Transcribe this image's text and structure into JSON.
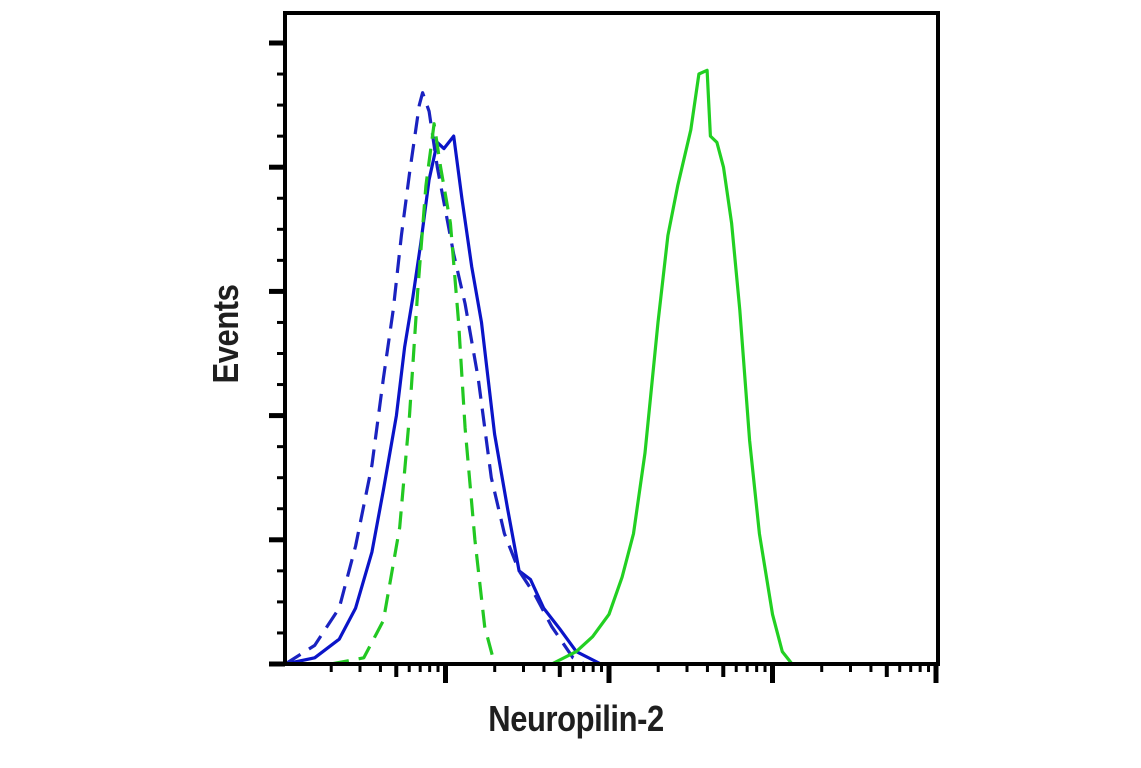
{
  "chart_data": {
    "type": "line",
    "title": "",
    "xlabel": "Neuropilin-2",
    "ylabel": "Events",
    "x_scale": "log",
    "x_decades": 4,
    "x_major_ticks": [
      1,
      2,
      3
    ],
    "y_major_ticks": [
      0,
      1,
      2,
      3,
      4,
      5
    ],
    "y_minor_per_major": 4,
    "tick_labels_shown": false,
    "grid": false,
    "legend": null,
    "xlim": [
      0,
      4
    ],
    "ylim": [
      0,
      5.2
    ],
    "series": [
      {
        "name": "blue-solid",
        "color": "#0a14c8",
        "dash": "none",
        "points": [
          [
            0.02,
            0.0
          ],
          [
            0.2,
            0.05
          ],
          [
            0.35,
            0.2
          ],
          [
            0.45,
            0.45
          ],
          [
            0.55,
            0.9
          ],
          [
            0.62,
            1.4
          ],
          [
            0.7,
            2.0
          ],
          [
            0.75,
            2.55
          ],
          [
            0.8,
            2.95
          ],
          [
            0.85,
            3.4
          ],
          [
            0.9,
            3.9
          ],
          [
            0.95,
            4.2
          ],
          [
            0.99,
            4.15
          ],
          [
            1.05,
            4.25
          ],
          [
            1.1,
            3.75
          ],
          [
            1.16,
            3.2
          ],
          [
            1.22,
            2.75
          ],
          [
            1.3,
            1.85
          ],
          [
            1.38,
            1.25
          ],
          [
            1.45,
            0.75
          ],
          [
            1.52,
            0.68
          ],
          [
            1.6,
            0.45
          ],
          [
            1.7,
            0.28
          ],
          [
            1.8,
            0.1
          ],
          [
            1.95,
            0.0
          ],
          [
            4.0,
            0.0
          ]
        ]
      },
      {
        "name": "blue-dashed",
        "color": "#1a22c0",
        "dash": "18,10",
        "points": [
          [
            0.02,
            0.0
          ],
          [
            0.2,
            0.15
          ],
          [
            0.35,
            0.45
          ],
          [
            0.45,
            0.95
          ],
          [
            0.55,
            1.6
          ],
          [
            0.62,
            2.3
          ],
          [
            0.68,
            2.85
          ],
          [
            0.73,
            3.45
          ],
          [
            0.78,
            3.95
          ],
          [
            0.84,
            4.5
          ],
          [
            0.86,
            4.6
          ],
          [
            0.9,
            4.45
          ],
          [
            0.95,
            4.0
          ],
          [
            1.05,
            3.3
          ],
          [
            1.12,
            2.9
          ],
          [
            1.2,
            2.3
          ],
          [
            1.28,
            1.5
          ],
          [
            1.36,
            1.05
          ],
          [
            1.45,
            0.75
          ],
          [
            1.55,
            0.55
          ],
          [
            1.65,
            0.3
          ],
          [
            1.78,
            0.05
          ],
          [
            1.85,
            0.0
          ]
        ]
      },
      {
        "name": "green-dashed",
        "color": "#22c822",
        "dash": "18,10",
        "points": [
          [
            0.3,
            0.0
          ],
          [
            0.5,
            0.05
          ],
          [
            0.62,
            0.35
          ],
          [
            0.72,
            1.1
          ],
          [
            0.78,
            2.0
          ],
          [
            0.83,
            3.0
          ],
          [
            0.88,
            3.85
          ],
          [
            0.93,
            4.35
          ],
          [
            0.97,
            4.0
          ],
          [
            1.03,
            3.55
          ],
          [
            1.08,
            2.75
          ],
          [
            1.12,
            1.9
          ],
          [
            1.18,
            1.0
          ],
          [
            1.24,
            0.3
          ],
          [
            1.3,
            0.0
          ],
          [
            1.6,
            0.0
          ]
        ]
      },
      {
        "name": "green-solid",
        "color": "#22d022",
        "dash": "none",
        "points": [
          [
            1.65,
            0.0
          ],
          [
            1.8,
            0.1
          ],
          [
            1.9,
            0.22
          ],
          [
            2.0,
            0.4
          ],
          [
            2.08,
            0.7
          ],
          [
            2.15,
            1.05
          ],
          [
            2.22,
            1.7
          ],
          [
            2.3,
            2.75
          ],
          [
            2.36,
            3.45
          ],
          [
            2.42,
            3.85
          ],
          [
            2.5,
            4.3
          ],
          [
            2.55,
            4.75
          ],
          [
            2.6,
            4.78
          ],
          [
            2.62,
            4.25
          ],
          [
            2.66,
            4.2
          ],
          [
            2.7,
            4.0
          ],
          [
            2.75,
            3.55
          ],
          [
            2.8,
            2.85
          ],
          [
            2.86,
            1.8
          ],
          [
            2.92,
            1.05
          ],
          [
            3.0,
            0.4
          ],
          [
            3.06,
            0.1
          ],
          [
            3.12,
            0.0
          ],
          [
            4.0,
            0.0
          ]
        ]
      }
    ]
  }
}
